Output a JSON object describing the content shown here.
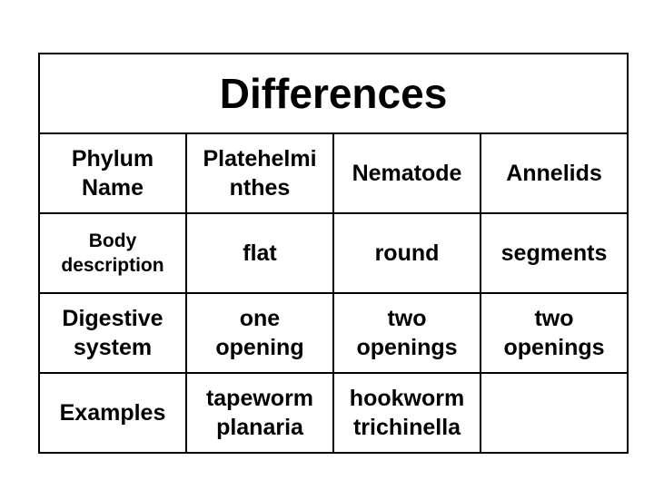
{
  "table": {
    "title": "Differences",
    "header": {
      "label_1": "Phylum",
      "label_2": "Name",
      "col1_1": "Platehelmi",
      "col1_2": "nthes",
      "col2": "Nematode",
      "col3": "Annelids"
    },
    "body": {
      "label_1": "Body",
      "label_2": "description",
      "col1": "flat",
      "col2": "round",
      "col3": "segments"
    },
    "digestive": {
      "label_1": "Digestive",
      "label_2": "system",
      "col1_1": "one",
      "col1_2": "opening",
      "col2_1": "two",
      "col2_2": "openings",
      "col3_1": "two",
      "col3_2": "openings"
    },
    "examples": {
      "label": "Examples",
      "col1_1": "tapeworm",
      "col1_2": "planaria",
      "col2_1": "hookworm",
      "col2_2": "trichinella",
      "col3": ""
    }
  }
}
